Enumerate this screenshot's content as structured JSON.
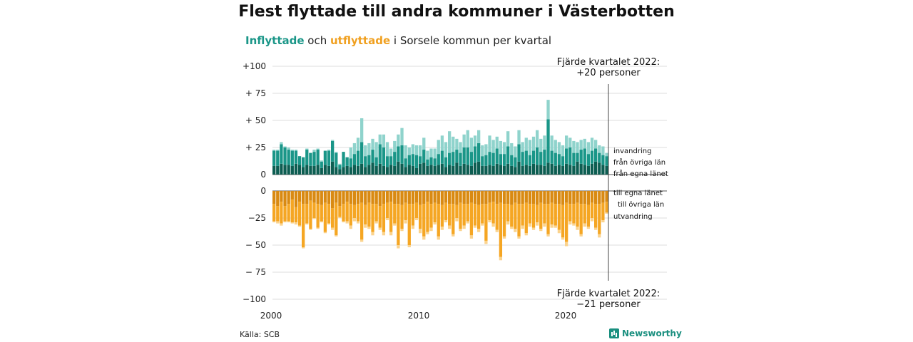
{
  "header": {
    "title": "Flest flyttade till andra kommuner i Västerbotten",
    "subtitle_in": "Inflyttade",
    "subtitle_and": " och ",
    "subtitle_out": "utflyttade",
    "subtitle_rest": " i Sorsele kommun per kvartal"
  },
  "footer": {
    "source": "Källa: SCB",
    "brand": "Newsworthy"
  },
  "annotations": {
    "top_line1": "Fjärde kvartalet 2022:",
    "top_line2": "+20 personer",
    "bottom_line1": "Fjärde kvartalet 2022:",
    "bottom_line2": "−21 personer"
  },
  "colors": {
    "in_county": "#0d5e52",
    "in_other": "#1a9688",
    "in_immig": "#8fd3cc",
    "out_county": "#d98a12",
    "out_other": "#f5a623",
    "out_emig": "#fbd38d",
    "grid": "#dddddd"
  },
  "chart_data": [
    {
      "type": "bar",
      "stacked": true,
      "title": "Inflyttade",
      "x_start": "2000 Q1",
      "x_end": "2022 Q4",
      "x_ticks": [
        "2000",
        "2010",
        "2020"
      ],
      "y_ticks": [
        "+100",
        "+ 75",
        "+ 50",
        "+ 25",
        "0"
      ],
      "ylim": [
        0,
        100
      ],
      "grid": true,
      "series": [
        {
          "name": "från egna länet",
          "values": [
            8,
            8,
            10,
            9,
            9,
            8,
            10,
            9,
            7,
            9,
            8,
            8,
            9,
            6,
            9,
            8,
            12,
            7,
            5,
            7,
            8,
            7,
            9,
            8,
            10,
            7,
            9,
            11,
            8,
            10,
            8,
            7,
            9,
            8,
            12,
            10,
            7,
            9,
            8,
            6,
            10,
            11,
            8,
            9,
            8,
            9,
            10,
            7,
            9,
            8,
            11,
            8,
            10,
            9,
            8,
            11,
            12,
            8,
            8,
            9,
            8,
            10,
            9,
            8,
            10,
            8,
            7,
            12,
            8,
            9,
            8,
            10,
            9,
            9,
            8,
            11,
            10,
            8,
            9,
            8,
            10,
            9,
            8,
            12,
            10,
            9,
            8,
            10,
            12,
            11,
            9,
            8
          ]
        },
        {
          "name": "från övriga län",
          "values": [
            14,
            14,
            18,
            16,
            14,
            14,
            12,
            8,
            9,
            14,
            12,
            13,
            14,
            6,
            13,
            14,
            19,
            13,
            4,
            14,
            8,
            8,
            10,
            14,
            20,
            10,
            9,
            12,
            8,
            18,
            17,
            10,
            8,
            13,
            14,
            17,
            8,
            9,
            11,
            12,
            7,
            12,
            6,
            7,
            7,
            10,
            12,
            9,
            11,
            13,
            12,
            12,
            15,
            16,
            13,
            15,
            17,
            9,
            10,
            12,
            12,
            14,
            10,
            11,
            16,
            10,
            9,
            16,
            13,
            13,
            10,
            12,
            16,
            12,
            15,
            40,
            12,
            12,
            10,
            9,
            14,
            16,
            12,
            8,
            13,
            15,
            11,
            12,
            12,
            9,
            9,
            9
          ]
        },
        {
          "name": "invandring",
          "values": [
            1,
            1,
            2,
            1,
            2,
            1,
            1,
            0,
            0,
            1,
            0,
            2,
            1,
            1,
            0,
            1,
            1,
            1,
            1,
            0,
            0,
            10,
            10,
            12,
            22,
            10,
            11,
            10,
            14,
            9,
            12,
            13,
            7,
            10,
            11,
            16,
            12,
            7,
            9,
            9,
            10,
            11,
            8,
            8,
            9,
            13,
            14,
            14,
            20,
            14,
            10,
            10,
            12,
            16,
            13,
            10,
            12,
            10,
            10,
            15,
            12,
            11,
            12,
            11,
            14,
            11,
            10,
            13,
            9,
            12,
            14,
            13,
            16,
            12,
            13,
            18,
            14,
            12,
            11,
            10,
            12,
            9,
            11,
            10,
            9,
            9,
            11,
            12,
            8,
            7,
            8,
            3
          ]
        }
      ]
    },
    {
      "type": "bar",
      "stacked": true,
      "title": "Utflyttade",
      "x_start": "2000 Q1",
      "x_end": "2022 Q4",
      "x_ticks": [
        "2000",
        "2010",
        "2020"
      ],
      "y_ticks": [
        "0",
        "−25",
        "− 50",
        "− 75",
        "−100"
      ],
      "ylim": [
        -100,
        0
      ],
      "grid": true,
      "series": [
        {
          "name": "till egna länet",
          "values": [
            -12,
            -14,
            -10,
            -14,
            -12,
            -8,
            -15,
            -10,
            -12,
            -12,
            -9,
            -11,
            -12,
            -13,
            -11,
            -12,
            -16,
            -11,
            -14,
            -12,
            -10,
            -12,
            -13,
            -12,
            -11,
            -13,
            -11,
            -12,
            -12,
            -14,
            -12,
            -11,
            -10,
            -12,
            -12,
            -13,
            -11,
            -12,
            -12,
            -11,
            -13,
            -12,
            -10,
            -12,
            -11,
            -12,
            -13,
            -11,
            -12,
            -12,
            -13,
            -11,
            -12,
            -12,
            -11,
            -12,
            -13,
            -12,
            -12,
            -11,
            -10,
            -12,
            -11,
            -12,
            -12,
            -13,
            -11,
            -12,
            -12,
            -11,
            -12,
            -12,
            -13,
            -11,
            -12,
            -12,
            -11,
            -12,
            -12,
            -13,
            -11,
            -12,
            -12,
            -11,
            -12,
            -12,
            -13,
            -11,
            -12,
            -12,
            -11,
            -10
          ]
        },
        {
          "name": "till övriga län",
          "values": [
            -16,
            -14,
            -20,
            -14,
            -16,
            -21,
            -14,
            -22,
            -40,
            -18,
            -26,
            -14,
            -22,
            -15,
            -27,
            -18,
            -18,
            -30,
            -10,
            -16,
            -18,
            -20,
            -12,
            -16,
            -34,
            -18,
            -22,
            -26,
            -16,
            -20,
            -26,
            -14,
            -28,
            -18,
            -38,
            -22,
            -16,
            -38,
            -20,
            -14,
            -22,
            -30,
            -28,
            -22,
            -18,
            -30,
            -20,
            -16,
            -20,
            -28,
            -12,
            -24,
            -20,
            -16,
            -30,
            -20,
            -22,
            -18,
            -34,
            -16,
            -20,
            -24,
            -50,
            -30,
            -16,
            -20,
            -24,
            -30,
            -20,
            -28,
            -18,
            -22,
            -16,
            -24,
            -18,
            -28,
            -20,
            -20,
            -24,
            -30,
            -36,
            -16,
            -18,
            -22,
            -28,
            -18,
            -20,
            -14,
            -22,
            -28,
            -16,
            -10
          ]
        },
        {
          "name": "utvandring",
          "values": [
            -1,
            -2,
            -2,
            -1,
            -1,
            -1,
            -2,
            -1,
            -1,
            -1,
            -1,
            -1,
            -1,
            -1,
            -1,
            -1,
            -2,
            -1,
            -1,
            -1,
            -2,
            -3,
            -3,
            -2,
            -2,
            -3,
            -2,
            -3,
            -2,
            -2,
            -3,
            -2,
            -3,
            -2,
            -3,
            -2,
            -3,
            -2,
            -3,
            -2,
            -4,
            -3,
            -2,
            -3,
            -2,
            -3,
            -3,
            -2,
            -3,
            -2,
            -3,
            -2,
            -3,
            -2,
            -3,
            -2,
            -3,
            -2,
            -3,
            -2,
            -3,
            -2,
            -3,
            -2,
            -3,
            -2,
            -3,
            -2,
            -3,
            -2,
            -3,
            -2,
            -3,
            -2,
            -3,
            -2,
            -3,
            -2,
            -3,
            -2,
            -4,
            -3,
            -2,
            -3,
            -2,
            -3,
            -2,
            -3,
            -2,
            -3,
            -2,
            -1
          ]
        }
      ]
    }
  ]
}
